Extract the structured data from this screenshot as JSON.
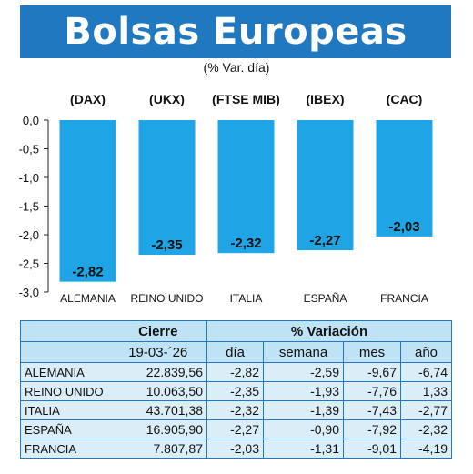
{
  "header": {
    "title": "Bolsas Europeas",
    "subtitle": "(% Var. día)"
  },
  "chart_data": {
    "type": "bar",
    "categories": [
      "ALEMANIA",
      "REINO UNIDO",
      "ITALIA",
      "ESPAÑA",
      "FRANCIA"
    ],
    "indices": [
      "(DAX)",
      "(UKX)",
      "(FTSE MIB)",
      "(IBEX)",
      "(CAC)"
    ],
    "values": [
      -2.82,
      -2.35,
      -2.32,
      -2.27,
      -2.03
    ],
    "value_labels": [
      "-2,82",
      "-2,35",
      "-2,32",
      "-2,27",
      "-2,03"
    ],
    "ylim": [
      -3.0,
      0.0
    ],
    "yticks": [
      0.0,
      -0.5,
      -1.0,
      -1.5,
      -2.0,
      -2.5,
      -3.0
    ],
    "ytick_labels": [
      "0,0",
      "-0,5",
      "-1,0",
      "-1,5",
      "-2,0",
      "-2,5",
      "-3,0"
    ],
    "bar_color": "#1fa5e6",
    "grid": false
  },
  "table": {
    "group_headers": {
      "cierre": "Cierre",
      "variacion": "% Variación"
    },
    "date": "19-03-´26",
    "col_headers": [
      "día",
      "semana",
      "mes",
      "año"
    ],
    "rows": [
      {
        "name": "ALEMANIA",
        "cierre": "22.839,56",
        "dia": "-2,82",
        "semana": "-2,59",
        "mes": "-9,67",
        "anio": "-6,74"
      },
      {
        "name": "REINO UNIDO",
        "cierre": "10.063,50",
        "dia": "-2,35",
        "semana": "-1,93",
        "mes": "-7,76",
        "anio": "1,33"
      },
      {
        "name": "ITALIA",
        "cierre": "43.701,38",
        "dia": "-2,32",
        "semana": "-1,39",
        "mes": "-7,43",
        "anio": "-2,77"
      },
      {
        "name": "ESPAÑA",
        "cierre": "16.905,90",
        "dia": "-2,27",
        "semana": "-0,90",
        "mes": "-7,92",
        "anio": "-2,32"
      },
      {
        "name": "FRANCIA",
        "cierre": "7.807,87",
        "dia": "-2,03",
        "semana": "-1,31",
        "mes": "-9,01",
        "anio": "-4,19"
      }
    ]
  },
  "colors": {
    "banner": "#1f78c0",
    "table_header": "#bfe2f4",
    "table_body": "#dbeef8"
  }
}
